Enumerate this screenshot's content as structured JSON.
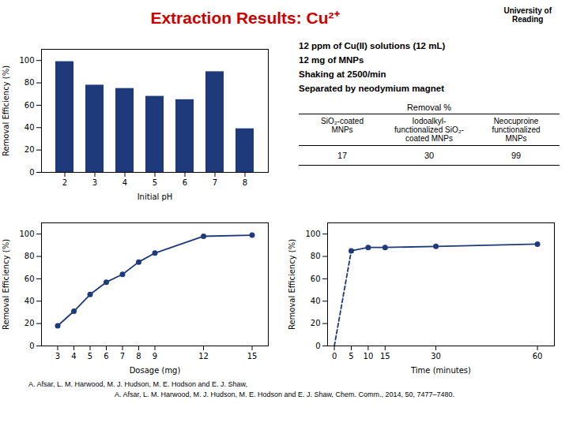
{
  "title": "Extraction Results: Cu²⁺",
  "title_color": "#cc0000",
  "logo": "University of\nReading",
  "info_lines": [
    "12 ppm of Cu(II) solutions (12 mL)",
    "12 mg of MNPs",
    "Shaking at 2500/min",
    "Separated by neodymium magnet"
  ],
  "table": {
    "title": "Removal %",
    "columns": [
      "SiO₂-coated\nMNPs",
      "Iodoalkyl-\nfunctionalized SiO₂-\ncoated MNPs",
      "Neocuproine\nfunctionalized\nMNPs"
    ],
    "rows": [
      [
        "17",
        "30",
        "99"
      ]
    ]
  },
  "citation": [
    "A. Afsar, L. M. Harwood, M. J. Hudson, M. E. Hodson and E. J. Shaw, ",
    "A. Afsar, L. M. Harwood, M. J. Hudson, M. E. Hodson and E. J. Shaw, Chem. Comm., 2014, 50, 7477–7480."
  ],
  "chart_data": [
    {
      "type": "bar",
      "categories": [
        "2",
        "3",
        "4",
        "5",
        "6",
        "7",
        "8"
      ],
      "values": [
        99,
        78,
        75,
        68,
        65,
        90,
        39
      ],
      "color": "#1f3a7a",
      "xlabel": "Initial pH",
      "ylabel": "Removal Efficiency (%)",
      "ylim": [
        0,
        110
      ],
      "yticks": [
        0,
        20,
        40,
        60,
        80,
        100
      ],
      "grid": false
    },
    {
      "type": "line",
      "x": [
        3,
        4,
        5,
        6,
        7,
        8,
        9,
        12,
        15
      ],
      "values": [
        18,
        31,
        46,
        57,
        64,
        75,
        83,
        98,
        99
      ],
      "color": "#1f3a7a",
      "marker": "circle",
      "line_style": "solid",
      "xlabel": "Dosage (mg)",
      "ylabel": "Removal Efficiency (%)",
      "xlim": [
        2,
        16
      ],
      "xticks": [
        3,
        4,
        5,
        6,
        7,
        8,
        9,
        12,
        15
      ],
      "ylim": [
        0,
        110
      ],
      "yticks": [
        0,
        20,
        40,
        60,
        80,
        100
      ],
      "grid": false
    },
    {
      "type": "line",
      "x": [
        0,
        5,
        10,
        15,
        30,
        60
      ],
      "series": [
        {
          "color": "#1f3a7a",
          "line_style": "dashed",
          "marker": "none",
          "values": [
            0,
            85,
            null,
            null,
            null,
            null
          ]
        },
        {
          "color": "#1f3a7a",
          "line_style": "solid",
          "marker": "circle",
          "values": [
            null,
            85,
            88,
            88,
            89,
            91
          ]
        }
      ],
      "xlabel": "Time (minutes)",
      "ylabel": "Removal Efficiency (%)",
      "xlim": [
        -2,
        65
      ],
      "xticks": [
        0,
        5,
        10,
        15,
        30,
        60
      ],
      "ylim": [
        0,
        110
      ],
      "yticks": [
        0,
        20,
        40,
        60,
        80,
        100
      ],
      "grid": false
    }
  ]
}
